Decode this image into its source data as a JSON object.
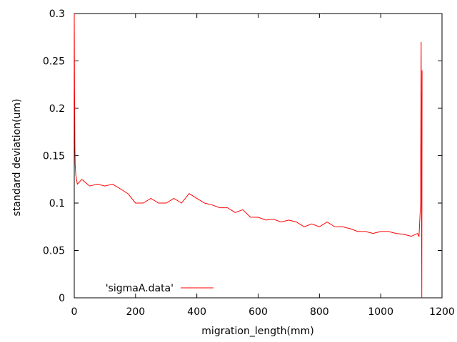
{
  "chart_data": {
    "type": "line",
    "title": "",
    "xlabel": "migration_length(mm)",
    "ylabel": "standard deviation(um)",
    "xlim": [
      0,
      1200
    ],
    "ylim": [
      0,
      0.3
    ],
    "x_ticks": [
      0,
      200,
      400,
      600,
      800,
      1000,
      1200
    ],
    "y_ticks": [
      0,
      0.05,
      0.1,
      0.15,
      0.2,
      0.25,
      0.3
    ],
    "x_tick_labels": [
      "0",
      "200",
      "400",
      "600",
      "800",
      "1000",
      "1200"
    ],
    "y_tick_labels": [
      "0",
      "0.05",
      "0.1",
      "0.15",
      "0.2",
      "0.25",
      "0.3"
    ],
    "grid": false,
    "legend_position": "bottom-left",
    "series": [
      {
        "name": "'sigmaA.data'",
        "color": "#ff0000",
        "points": [
          [
            0,
            0.3
          ],
          [
            1,
            0.22
          ],
          [
            2,
            0.16
          ],
          [
            3,
            0.14
          ],
          [
            5,
            0.13
          ],
          [
            10,
            0.12
          ],
          [
            25,
            0.125
          ],
          [
            50,
            0.118
          ],
          [
            75,
            0.12
          ],
          [
            100,
            0.118
          ],
          [
            125,
            0.12
          ],
          [
            150,
            0.115
          ],
          [
            175,
            0.11
          ],
          [
            200,
            0.1
          ],
          [
            225,
            0.1
          ],
          [
            250,
            0.105
          ],
          [
            275,
            0.1
          ],
          [
            300,
            0.1
          ],
          [
            325,
            0.105
          ],
          [
            350,
            0.1
          ],
          [
            375,
            0.11
          ],
          [
            400,
            0.105
          ],
          [
            425,
            0.1
          ],
          [
            450,
            0.098
          ],
          [
            475,
            0.095
          ],
          [
            500,
            0.095
          ],
          [
            525,
            0.09
          ],
          [
            550,
            0.093
          ],
          [
            575,
            0.085
          ],
          [
            600,
            0.085
          ],
          [
            625,
            0.082
          ],
          [
            650,
            0.083
          ],
          [
            675,
            0.08
          ],
          [
            700,
            0.082
          ],
          [
            725,
            0.08
          ],
          [
            750,
            0.075
          ],
          [
            775,
            0.078
          ],
          [
            800,
            0.075
          ],
          [
            825,
            0.08
          ],
          [
            850,
            0.075
          ],
          [
            875,
            0.075
          ],
          [
            900,
            0.073
          ],
          [
            925,
            0.07
          ],
          [
            950,
            0.07
          ],
          [
            975,
            0.068
          ],
          [
            1000,
            0.07
          ],
          [
            1025,
            0.07
          ],
          [
            1050,
            0.068
          ],
          [
            1075,
            0.067
          ],
          [
            1100,
            0.065
          ],
          [
            1120,
            0.068
          ],
          [
            1125,
            0.065
          ],
          [
            1130,
            0.1
          ],
          [
            1132,
            0.27
          ],
          [
            1134,
            0.0
          ],
          [
            1135,
            0.24
          ]
        ]
      }
    ]
  }
}
